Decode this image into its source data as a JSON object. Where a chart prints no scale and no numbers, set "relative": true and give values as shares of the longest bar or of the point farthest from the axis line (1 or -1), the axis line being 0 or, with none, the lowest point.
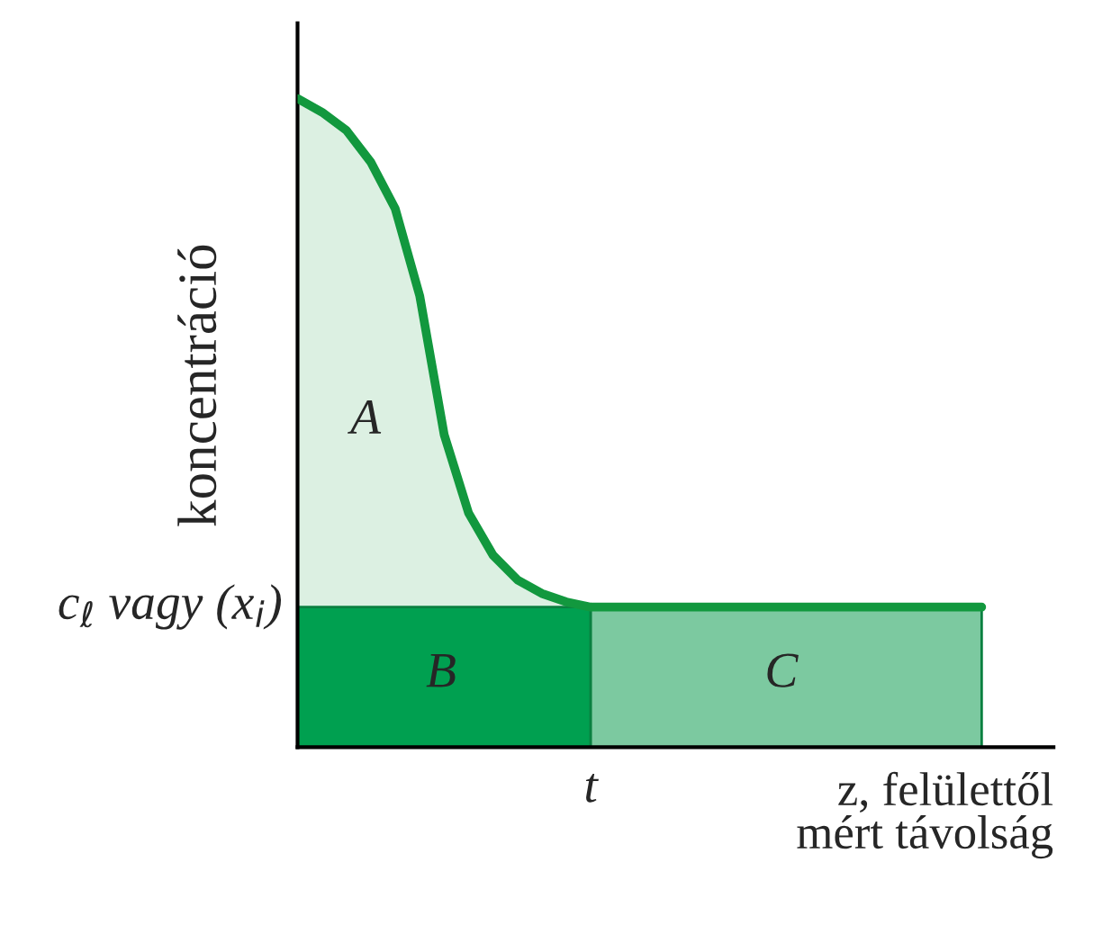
{
  "chart_data": {
    "type": "line",
    "relative": true,
    "xlabel": "z, felülettől\nmért távolság",
    "ylabel": "koncentráció",
    "categories": [
      null,
      null,
      null,
      null,
      null,
      null,
      null,
      null,
      null,
      null,
      null,
      null,
      null,
      null,
      null,
      null,
      null,
      null,
      null,
      null,
      null,
      null,
      null,
      null,
      null,
      null,
      null,
      null,
      null
    ],
    "series": [
      {
        "type": "area",
        "color": "#00a050",
        "values": [
          0.216,
          0.216,
          0.216,
          0.216,
          0.216,
          0.216,
          0.216,
          0.216,
          0.216,
          0.216,
          0.216,
          0.216,
          0.216,
          null,
          null,
          null,
          null,
          null,
          null,
          null,
          null,
          null,
          null,
          null,
          null,
          null,
          null,
          null,
          null
        ]
      },
      {
        "type": "area",
        "color": "#7cc9a0",
        "values": [
          null,
          null,
          null,
          null,
          null,
          null,
          null,
          null,
          null,
          null,
          null,
          null,
          0.216,
          0.216,
          0.216,
          0.216,
          0.216,
          0.216,
          0.216,
          0.216,
          0.216,
          0.216,
          0.216,
          0.216,
          0.216,
          0.216,
          0.216,
          0.216,
          0.216
        ]
      },
      {
        "color": "#12983e",
        "values": [
          1.0,
          0.979,
          0.951,
          0.902,
          0.83,
          0.696,
          0.482,
          0.361,
          0.296,
          0.258,
          0.237,
          0.224,
          0.216,
          0.216,
          0.216,
          0.216,
          0.216,
          0.216,
          0.216,
          0.216,
          0.216,
          0.216,
          0.216,
          0.216,
          0.216,
          0.216,
          0.216,
          0.216,
          0.216
        ]
      }
    ],
    "annotations": [
      "A",
      "B",
      "C",
      "c$_{ℓ}$ vagy (x$_{i}$)",
      "t"
    ]
  }
}
